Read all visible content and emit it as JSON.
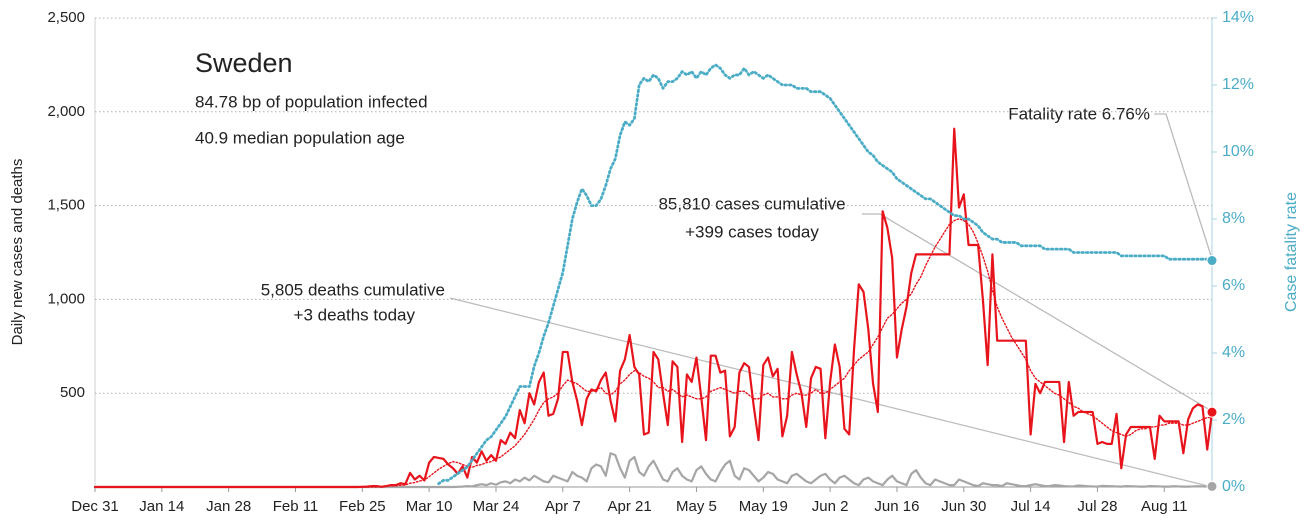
{
  "chart_data": {
    "type": "line",
    "title": "Sweden",
    "subtitle": [
      "84.78 bp of population infected",
      "40.9 median population age"
    ],
    "y_label": "Daily new cases and deaths",
    "y2_label": "Case fatality rate",
    "annotations": {
      "fatality": "Fatality rate 6.76%",
      "cases": [
        "85,810 cases cumulative",
        "+399 cases today"
      ],
      "deaths": [
        "5,805 deaths cumulative",
        "+3 deaths today"
      ]
    },
    "categories": [
      "Dec 31",
      null,
      null,
      null,
      null,
      null,
      null,
      null,
      null,
      null,
      null,
      null,
      null,
      null,
      "Jan 14",
      null,
      null,
      null,
      null,
      null,
      null,
      null,
      null,
      null,
      null,
      null,
      null,
      null,
      "Jan 28",
      null,
      null,
      null,
      null,
      null,
      null,
      null,
      null,
      null,
      null,
      null,
      null,
      null,
      "Feb 11",
      null,
      null,
      null,
      null,
      null,
      null,
      null,
      null,
      null,
      null,
      null,
      null,
      null,
      "Feb 25",
      null,
      null,
      null,
      null,
      null,
      null,
      null,
      null,
      null,
      null,
      null,
      null,
      null,
      "Mar 10",
      null,
      null,
      null,
      null,
      null,
      null,
      null,
      null,
      null,
      null,
      null,
      null,
      null,
      "Mar 24",
      null,
      null,
      null,
      null,
      null,
      null,
      null,
      null,
      null,
      null,
      null,
      null,
      null,
      "Apr 7",
      null,
      null,
      null,
      null,
      null,
      null,
      null,
      null,
      null,
      null,
      null,
      null,
      null,
      "Apr 21",
      null,
      null,
      null,
      null,
      null,
      null,
      null,
      null,
      null,
      null,
      null,
      null,
      null,
      "May 5",
      null,
      null,
      null,
      null,
      null,
      null,
      null,
      null,
      null,
      null,
      null,
      null,
      null,
      "May 19",
      null,
      null,
      null,
      null,
      null,
      null,
      null,
      null,
      null,
      null,
      null,
      null,
      null,
      "Jun 2",
      null,
      null,
      null,
      null,
      null,
      null,
      null,
      null,
      null,
      null,
      null,
      null,
      null,
      "Jun 16",
      null,
      null,
      null,
      null,
      null,
      null,
      null,
      null,
      null,
      null,
      null,
      null,
      null,
      "Jun 30",
      null,
      null,
      null,
      null,
      null,
      null,
      null,
      null,
      null,
      null,
      null,
      null,
      null,
      "Jul 14",
      null,
      null,
      null,
      null,
      null,
      null,
      null,
      null,
      null,
      null,
      null,
      null,
      null,
      "Jul 28",
      null,
      null,
      null,
      null,
      null,
      null,
      null,
      null,
      null,
      null,
      null,
      null,
      null,
      "Aug 11",
      null,
      null,
      null,
      null,
      null,
      null,
      null,
      null,
      null,
      null
    ],
    "ylim": [
      0,
      2500
    ],
    "yticks": [
      500,
      {
        "value": 1000,
        "label": "1,000"
      },
      {
        "value": 1500,
        "label": "1,500"
      },
      {
        "value": 2000,
        "label": "2,000"
      },
      {
        "value": 2500,
        "label": "2,500"
      }
    ],
    "y2lim": [
      0,
      14
    ],
    "y2ticks": [
      {
        "value": 0,
        "label": "0%"
      },
      {
        "value": 2,
        "label": "2%"
      },
      {
        "value": 4,
        "label": "4%"
      },
      {
        "value": 6,
        "label": "6%"
      },
      {
        "value": 8,
        "label": "8%"
      },
      {
        "value": 10,
        "label": "10%"
      },
      {
        "value": 12,
        "label": "12%"
      },
      {
        "value": 14,
        "label": "14%"
      }
    ],
    "grid": true,
    "series": [
      {
        "name": "Cases 7-day average",
        "color": "#e8141c",
        "style": "dotted",
        "values": [
          0,
          0,
          0,
          0,
          0,
          0,
          0,
          0,
          0,
          0,
          0,
          0,
          0,
          0,
          0,
          0,
          0,
          0,
          0,
          0,
          0,
          0,
          0,
          0,
          0,
          0,
          0,
          0,
          0,
          0,
          0,
          0,
          0,
          0,
          0,
          0,
          0,
          0,
          0,
          0,
          0,
          0,
          0,
          0,
          0,
          0,
          0,
          0,
          0,
          0,
          0,
          0,
          0,
          0,
          0,
          0,
          0,
          0,
          0,
          0,
          3,
          5,
          6,
          7,
          9,
          11,
          20,
          24,
          32,
          37,
          55,
          75,
          95,
          110,
          125,
          135,
          130,
          120,
          110,
          105,
          115,
          120,
          130,
          135,
          150,
          160,
          180,
          200,
          220,
          250,
          280,
          320,
          360,
          410,
          450,
          470,
          480,
          500,
          540,
          570,
          560,
          550,
          530,
          510,
          510,
          520,
          530,
          500,
          490,
          510,
          550,
          570,
          600,
          620,
          610,
          590,
          580,
          560,
          530,
          530,
          510,
          520,
          500,
          480,
          490,
          480,
          470,
          470,
          480,
          510,
          520,
          530,
          520,
          510,
          500,
          510,
          510,
          490,
          470,
          470,
          490,
          500,
          480,
          480,
          470,
          470,
          490,
          500,
          490,
          490,
          500,
          520,
          500,
          500,
          520,
          540,
          560,
          580,
          620,
          650,
          680,
          700,
          720,
          760,
          800,
          850,
          900,
          920,
          950,
          980,
          1000,
          1030,
          1080,
          1120,
          1180,
          1230,
          1280,
          1320,
          1360,
          1400,
          1420,
          1430,
          1420,
          1400,
          1360,
          1300,
          1230,
          1150,
          1050,
          960,
          900,
          850,
          800,
          760,
          720,
          680,
          620,
          580,
          560,
          540,
          520,
          500,
          490,
          470,
          450,
          430,
          420,
          400,
          390,
          380,
          360,
          340,
          320,
          300,
          290,
          280,
          270,
          280,
          300,
          310,
          310,
          320,
          320,
          330,
          330,
          340,
          340,
          340,
          330,
          330,
          340,
          350,
          360,
          370,
          370
        ]
      },
      {
        "name": "Cases",
        "color": "#e8141c",
        "style": "solid",
        "end_marker": true,
        "values": [
          0,
          0,
          0,
          0,
          0,
          0,
          0,
          0,
          0,
          0,
          0,
          0,
          0,
          0,
          0,
          0,
          0,
          0,
          0,
          0,
          0,
          0,
          0,
          0,
          0,
          0,
          0,
          0,
          0,
          0,
          0,
          0,
          0,
          0,
          0,
          0,
          0,
          0,
          0,
          0,
          0,
          0,
          0,
          0,
          0,
          0,
          0,
          0,
          0,
          0,
          0,
          0,
          0,
          0,
          0,
          0,
          1,
          2,
          5,
          5,
          1,
          5,
          10,
          10,
          20,
          15,
          75,
          40,
          60,
          35,
          130,
          160,
          155,
          150,
          120,
          100,
          70,
          110,
          50,
          160,
          130,
          190,
          140,
          170,
          140,
          250,
          230,
          290,
          260,
          410,
          340,
          500,
          440,
          560,
          610,
          380,
          390,
          470,
          720,
          720,
          560,
          460,
          330,
          470,
          520,
          510,
          570,
          610,
          460,
          350,
          620,
          680,
          810,
          640,
          600,
          280,
          290,
          720,
          680,
          500,
          330,
          670,
          640,
          240,
          600,
          560,
          690,
          480,
          250,
          700,
          700,
          610,
          620,
          270,
          320,
          610,
          660,
          640,
          430,
          250,
          650,
          690,
          590,
          630,
          270,
          380,
          720,
          600,
          500,
          320,
          580,
          640,
          630,
          260,
          560,
          760,
          640,
          310,
          280,
          730,
          1080,
          1040,
          840,
          550,
          400,
          1470,
          1380,
          1220,
          690,
          840,
          960,
          1140,
          1240,
          1240,
          1240,
          1240,
          1240,
          1240,
          1240,
          1240,
          1910,
          1490,
          1560,
          1290,
          1290,
          1290,
          1000,
          650,
          1240,
          780,
          780,
          780,
          780,
          780,
          780,
          780,
          280,
          550,
          500,
          560,
          560,
          560,
          560,
          240,
          560,
          380,
          400,
          400,
          400,
          400,
          230,
          240,
          230,
          230,
          390,
          100,
          280,
          320,
          320,
          320,
          320,
          320,
          150,
          380,
          350,
          350,
          350,
          350,
          180,
          360,
          420,
          440,
          430,
          200,
          399
        ]
      },
      {
        "name": "Deaths",
        "color": "#a6a6a6",
        "style": "solid",
        "end_marker": true,
        "values": [
          0,
          0,
          0,
          0,
          0,
          0,
          0,
          0,
          0,
          0,
          0,
          0,
          0,
          0,
          0,
          0,
          0,
          0,
          0,
          0,
          0,
          0,
          0,
          0,
          0,
          0,
          0,
          0,
          0,
          0,
          0,
          0,
          0,
          0,
          0,
          0,
          0,
          0,
          0,
          0,
          0,
          0,
          0,
          0,
          0,
          0,
          0,
          0,
          0,
          0,
          0,
          0,
          0,
          0,
          0,
          0,
          0,
          0,
          0,
          0,
          0,
          0,
          0,
          0,
          0,
          0,
          0,
          0,
          0,
          0,
          0,
          0,
          0,
          0,
          0,
          0,
          1,
          2,
          5,
          3,
          10,
          15,
          10,
          20,
          12,
          25,
          30,
          20,
          40,
          30,
          50,
          35,
          60,
          45,
          30,
          25,
          60,
          50,
          40,
          30,
          80,
          60,
          50,
          30,
          100,
          120,
          110,
          60,
          180,
          170,
          100,
          50,
          140,
          160,
          80,
          60,
          110,
          140,
          90,
          40,
          30,
          80,
          100,
          60,
          40,
          30,
          90,
          110,
          70,
          40,
          30,
          80,
          120,
          140,
          60,
          40,
          100,
          90,
          60,
          30,
          50,
          80,
          70,
          40,
          30,
          20,
          60,
          70,
          50,
          30,
          20,
          40,
          60,
          70,
          40,
          20,
          50,
          60,
          40,
          20,
          10,
          40,
          50,
          30,
          20,
          10,
          40,
          60,
          30,
          20,
          10,
          70,
          90,
          50,
          20,
          10,
          40,
          30,
          20,
          10,
          10,
          40,
          30,
          20,
          10,
          5,
          20,
          15,
          10,
          10,
          5,
          20,
          15,
          10,
          5,
          5,
          10,
          15,
          10,
          5,
          5,
          10,
          8,
          5,
          3,
          3,
          8,
          6,
          4,
          3,
          2,
          6,
          5,
          4,
          3,
          2,
          5,
          4,
          3,
          2,
          2,
          5,
          4,
          3,
          2,
          2,
          4,
          3,
          2,
          2,
          3,
          4,
          3,
          2,
          3
        ]
      },
      {
        "name": "Case fatality rate",
        "color": "#4bacc6",
        "style": "dotted",
        "axis": "y2",
        "end_marker": true,
        "values": [
          null,
          null,
          null,
          null,
          null,
          null,
          null,
          null,
          null,
          null,
          null,
          null,
          null,
          null,
          null,
          null,
          null,
          null,
          null,
          null,
          null,
          null,
          null,
          null,
          null,
          null,
          null,
          null,
          null,
          null,
          null,
          null,
          null,
          null,
          null,
          null,
          null,
          null,
          null,
          null,
          null,
          null,
          null,
          null,
          null,
          null,
          null,
          null,
          null,
          null,
          null,
          null,
          null,
          null,
          null,
          null,
          null,
          null,
          null,
          null,
          null,
          null,
          null,
          null,
          null,
          null,
          null,
          null,
          null,
          null,
          null,
          null,
          0.1,
          0.2,
          0.2,
          0.3,
          0.4,
          0.5,
          0.6,
          0.8,
          1.0,
          1.2,
          1.4,
          1.5,
          1.7,
          1.9,
          2.1,
          2.4,
          2.7,
          3.0,
          3.0,
          3.0,
          3.6,
          4.0,
          4.5,
          4.9,
          5.4,
          5.9,
          6.4,
          7.2,
          8.0,
          8.5,
          8.9,
          8.7,
          8.4,
          8.4,
          8.6,
          9.0,
          9.5,
          9.8,
          10.5,
          10.9,
          10.8,
          11.0,
          12.0,
          12.2,
          12.1,
          12.3,
          12.2,
          11.9,
          12.1,
          12.1,
          12.2,
          12.4,
          12.3,
          12.4,
          12.2,
          12.4,
          12.3,
          12.5,
          12.6,
          12.5,
          12.3,
          12.2,
          12.3,
          12.3,
          12.5,
          12.3,
          12.4,
          12.3,
          12.2,
          12.3,
          12.2,
          12.1,
          12.0,
          12.0,
          12.0,
          11.9,
          11.9,
          11.9,
          11.8,
          11.8,
          11.8,
          11.7,
          11.6,
          11.4,
          11.2,
          11.0,
          10.8,
          10.6,
          10.4,
          10.2,
          10.0,
          9.9,
          9.7,
          9.6,
          9.5,
          9.4,
          9.2,
          9.1,
          9.0,
          8.9,
          8.8,
          8.7,
          8.6,
          8.6,
          8.5,
          8.4,
          8.3,
          8.2,
          8.1,
          8.1,
          8.0,
          8.0,
          7.9,
          7.8,
          7.6,
          7.5,
          7.4,
          7.4,
          7.3,
          7.3,
          7.3,
          7.3,
          7.2,
          7.2,
          7.2,
          7.2,
          7.2,
          7.1,
          7.1,
          7.1,
          7.1,
          7.1,
          7.1,
          7.0,
          7.0,
          7.0,
          7.0,
          7.0,
          7.0,
          7.0,
          7.0,
          7.0,
          7.0,
          6.9,
          6.9,
          6.9,
          6.9,
          6.9,
          6.9,
          6.9,
          6.9,
          6.9,
          6.9,
          6.8,
          6.8,
          6.8,
          6.8,
          6.8,
          6.8,
          6.8,
          6.8,
          6.8,
          6.76
        ]
      }
    ]
  }
}
